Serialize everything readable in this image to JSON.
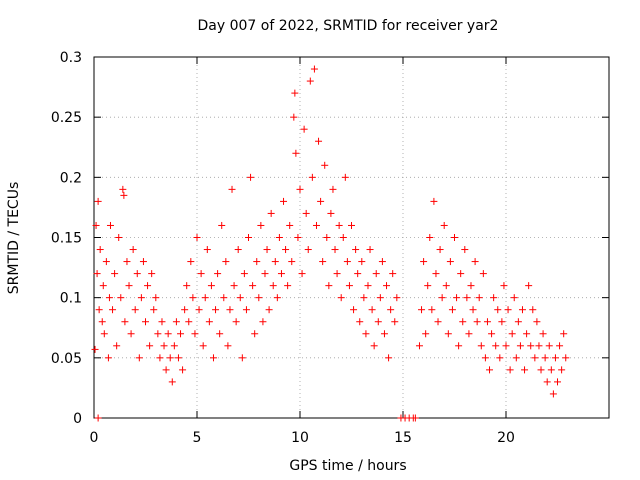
{
  "chart_data": {
    "type": "scatter",
    "title": "Day 007 of 2022, SRMTID for receiver yar2",
    "xlabel": "GPS time / hours",
    "ylabel": "SRMTID / TECUs",
    "xlim": [
      0,
      25
    ],
    "ylim": [
      0,
      0.3
    ],
    "grid": true,
    "marker": "+",
    "color": "#ff0000",
    "x_ticks": [
      0,
      5,
      10,
      15,
      20
    ],
    "x_tick_labels": [
      "0",
      "5",
      "10",
      "15",
      "20"
    ],
    "y_ticks": [
      0,
      0.05,
      0.1,
      0.15,
      0.2,
      0.25,
      0.3
    ],
    "y_tick_labels": [
      "0",
      "0.05",
      "0.1",
      "0.15",
      "0.2",
      "0.25",
      "0.3"
    ],
    "series": [
      {
        "name": "SRMTID",
        "points": [
          [
            0.05,
            0.057
          ],
          [
            0.1,
            0.16
          ],
          [
            0.15,
            0.12
          ],
          [
            0.2,
            0.18
          ],
          [
            0.25,
            0.09
          ],
          [
            0.3,
            0.14
          ],
          [
            0.4,
            0.08
          ],
          [
            0.45,
            0.11
          ],
          [
            0.5,
            0.07
          ],
          [
            0.6,
            0.13
          ],
          [
            0.7,
            0.05
          ],
          [
            0.75,
            0.1
          ],
          [
            0.8,
            0.16
          ],
          [
            0.9,
            0.09
          ],
          [
            1.0,
            0.12
          ],
          [
            1.1,
            0.06
          ],
          [
            1.2,
            0.15
          ],
          [
            1.3,
            0.1
          ],
          [
            1.4,
            0.19
          ],
          [
            1.45,
            0.185
          ],
          [
            1.5,
            0.08
          ],
          [
            1.6,
            0.13
          ],
          [
            1.7,
            0.11
          ],
          [
            1.8,
            0.07
          ],
          [
            1.9,
            0.14
          ],
          [
            2.0,
            0.09
          ],
          [
            2.1,
            0.12
          ],
          [
            2.2,
            0.05
          ],
          [
            2.3,
            0.1
          ],
          [
            2.4,
            0.13
          ],
          [
            2.5,
            0.08
          ],
          [
            2.6,
            0.11
          ],
          [
            2.7,
            0.06
          ],
          [
            2.8,
            0.12
          ],
          [
            2.9,
            0.09
          ],
          [
            3.0,
            0.1
          ],
          [
            3.1,
            0.07
          ],
          [
            3.2,
            0.05
          ],
          [
            3.3,
            0.08
          ],
          [
            3.4,
            0.06
          ],
          [
            3.5,
            0.04
          ],
          [
            3.6,
            0.07
          ],
          [
            3.7,
            0.05
          ],
          [
            3.8,
            0.03
          ],
          [
            3.9,
            0.06
          ],
          [
            4.0,
            0.08
          ],
          [
            4.1,
            0.05
          ],
          [
            4.2,
            0.07
          ],
          [
            4.3,
            0.04
          ],
          [
            4.4,
            0.09
          ],
          [
            4.5,
            0.11
          ],
          [
            4.6,
            0.08
          ],
          [
            4.7,
            0.13
          ],
          [
            4.8,
            0.1
          ],
          [
            4.9,
            0.07
          ],
          [
            5.0,
            0.15
          ],
          [
            5.1,
            0.09
          ],
          [
            5.2,
            0.12
          ],
          [
            5.3,
            0.06
          ],
          [
            5.4,
            0.1
          ],
          [
            5.5,
            0.14
          ],
          [
            5.6,
            0.08
          ],
          [
            5.7,
            0.11
          ],
          [
            5.8,
            0.05
          ],
          [
            5.9,
            0.09
          ],
          [
            6.0,
            0.12
          ],
          [
            6.1,
            0.07
          ],
          [
            6.2,
            0.16
          ],
          [
            6.3,
            0.1
          ],
          [
            6.4,
            0.13
          ],
          [
            6.5,
            0.06
          ],
          [
            6.6,
            0.09
          ],
          [
            6.7,
            0.19
          ],
          [
            6.8,
            0.11
          ],
          [
            6.9,
            0.08
          ],
          [
            7.0,
            0.14
          ],
          [
            7.1,
            0.1
          ],
          [
            7.2,
            0.05
          ],
          [
            7.3,
            0.12
          ],
          [
            7.4,
            0.09
          ],
          [
            7.5,
            0.15
          ],
          [
            7.6,
            0.2
          ],
          [
            7.7,
            0.11
          ],
          [
            7.8,
            0.07
          ],
          [
            7.9,
            0.13
          ],
          [
            8.0,
            0.1
          ],
          [
            8.1,
            0.16
          ],
          [
            8.2,
            0.08
          ],
          [
            8.3,
            0.12
          ],
          [
            8.4,
            0.14
          ],
          [
            8.5,
            0.09
          ],
          [
            8.6,
            0.17
          ],
          [
            8.7,
            0.11
          ],
          [
            8.8,
            0.13
          ],
          [
            8.9,
            0.1
          ],
          [
            9.0,
            0.15
          ],
          [
            9.1,
            0.12
          ],
          [
            9.2,
            0.18
          ],
          [
            9.3,
            0.14
          ],
          [
            9.4,
            0.11
          ],
          [
            9.5,
            0.16
          ],
          [
            9.6,
            0.13
          ],
          [
            9.7,
            0.25
          ],
          [
            9.75,
            0.27
          ],
          [
            9.8,
            0.22
          ],
          [
            9.9,
            0.15
          ],
          [
            10.0,
            0.19
          ],
          [
            10.1,
            0.12
          ],
          [
            10.2,
            0.24
          ],
          [
            10.3,
            0.17
          ],
          [
            10.4,
            0.14
          ],
          [
            10.5,
            0.28
          ],
          [
            10.6,
            0.2
          ],
          [
            10.7,
            0.29
          ],
          [
            10.8,
            0.16
          ],
          [
            10.9,
            0.23
          ],
          [
            11.0,
            0.18
          ],
          [
            11.1,
            0.13
          ],
          [
            11.2,
            0.21
          ],
          [
            11.3,
            0.15
          ],
          [
            11.4,
            0.11
          ],
          [
            11.5,
            0.17
          ],
          [
            11.6,
            0.19
          ],
          [
            11.7,
            0.14
          ],
          [
            11.8,
            0.12
          ],
          [
            11.9,
            0.16
          ],
          [
            12.0,
            0.1
          ],
          [
            12.1,
            0.15
          ],
          [
            12.2,
            0.2
          ],
          [
            12.3,
            0.13
          ],
          [
            12.4,
            0.11
          ],
          [
            12.5,
            0.16
          ],
          [
            12.6,
            0.09
          ],
          [
            12.7,
            0.14
          ],
          [
            12.8,
            0.12
          ],
          [
            12.9,
            0.08
          ],
          [
            13.0,
            0.13
          ],
          [
            13.1,
            0.1
          ],
          [
            13.2,
            0.07
          ],
          [
            13.3,
            0.11
          ],
          [
            13.4,
            0.14
          ],
          [
            13.5,
            0.09
          ],
          [
            13.6,
            0.06
          ],
          [
            13.7,
            0.12
          ],
          [
            13.8,
            0.08
          ],
          [
            13.9,
            0.1
          ],
          [
            14.0,
            0.13
          ],
          [
            14.1,
            0.07
          ],
          [
            14.2,
            0.11
          ],
          [
            14.3,
            0.05
          ],
          [
            14.4,
            0.09
          ],
          [
            14.5,
            0.12
          ],
          [
            14.6,
            0.08
          ],
          [
            14.7,
            0.1
          ],
          [
            15.8,
            0.06
          ],
          [
            15.9,
            0.09
          ],
          [
            16.0,
            0.13
          ],
          [
            16.1,
            0.07
          ],
          [
            16.2,
            0.11
          ],
          [
            16.3,
            0.15
          ],
          [
            16.4,
            0.09
          ],
          [
            16.5,
            0.18
          ],
          [
            16.6,
            0.12
          ],
          [
            16.7,
            0.08
          ],
          [
            16.8,
            0.14
          ],
          [
            16.9,
            0.1
          ],
          [
            17.0,
            0.16
          ],
          [
            17.1,
            0.11
          ],
          [
            17.2,
            0.07
          ],
          [
            17.3,
            0.13
          ],
          [
            17.4,
            0.09
          ],
          [
            17.5,
            0.15
          ],
          [
            17.6,
            0.1
          ],
          [
            17.7,
            0.06
          ],
          [
            17.8,
            0.12
          ],
          [
            17.9,
            0.08
          ],
          [
            18.0,
            0.14
          ],
          [
            18.1,
            0.1
          ],
          [
            18.2,
            0.07
          ],
          [
            18.3,
            0.11
          ],
          [
            18.4,
            0.09
          ],
          [
            18.5,
            0.13
          ],
          [
            18.6,
            0.08
          ],
          [
            18.7,
            0.1
          ],
          [
            18.8,
            0.06
          ],
          [
            18.9,
            0.12
          ],
          [
            19.0,
            0.05
          ],
          [
            19.1,
            0.08
          ],
          [
            19.2,
            0.04
          ],
          [
            19.3,
            0.07
          ],
          [
            19.4,
            0.1
          ],
          [
            19.5,
            0.06
          ],
          [
            19.6,
            0.09
          ],
          [
            19.7,
            0.05
          ],
          [
            19.8,
            0.08
          ],
          [
            19.9,
            0.11
          ],
          [
            20.0,
            0.06
          ],
          [
            20.1,
            0.09
          ],
          [
            20.2,
            0.04
          ],
          [
            20.3,
            0.07
          ],
          [
            20.4,
            0.1
          ],
          [
            20.5,
            0.05
          ],
          [
            20.6,
            0.08
          ],
          [
            20.7,
            0.06
          ],
          [
            20.8,
            0.09
          ],
          [
            20.9,
            0.04
          ],
          [
            21.0,
            0.07
          ],
          [
            21.1,
            0.11
          ],
          [
            21.2,
            0.06
          ],
          [
            21.3,
            0.09
          ],
          [
            21.4,
            0.05
          ],
          [
            21.5,
            0.08
          ],
          [
            21.6,
            0.06
          ],
          [
            21.7,
            0.04
          ],
          [
            21.8,
            0.07
          ],
          [
            21.9,
            0.05
          ],
          [
            22.0,
            0.03
          ],
          [
            22.1,
            0.06
          ],
          [
            22.2,
            0.04
          ],
          [
            22.3,
            0.02
          ],
          [
            22.4,
            0.05
          ],
          [
            22.5,
            0.03
          ],
          [
            22.6,
            0.06
          ],
          [
            22.7,
            0.04
          ],
          [
            22.8,
            0.07
          ],
          [
            22.9,
            0.05
          ],
          [
            0.2,
            0.0
          ],
          [
            14.9,
            0.0
          ],
          [
            15.1,
            0.0
          ],
          [
            15.3,
            0.0
          ],
          [
            15.5,
            0.0
          ],
          [
            15.6,
            0.0
          ]
        ]
      }
    ]
  }
}
